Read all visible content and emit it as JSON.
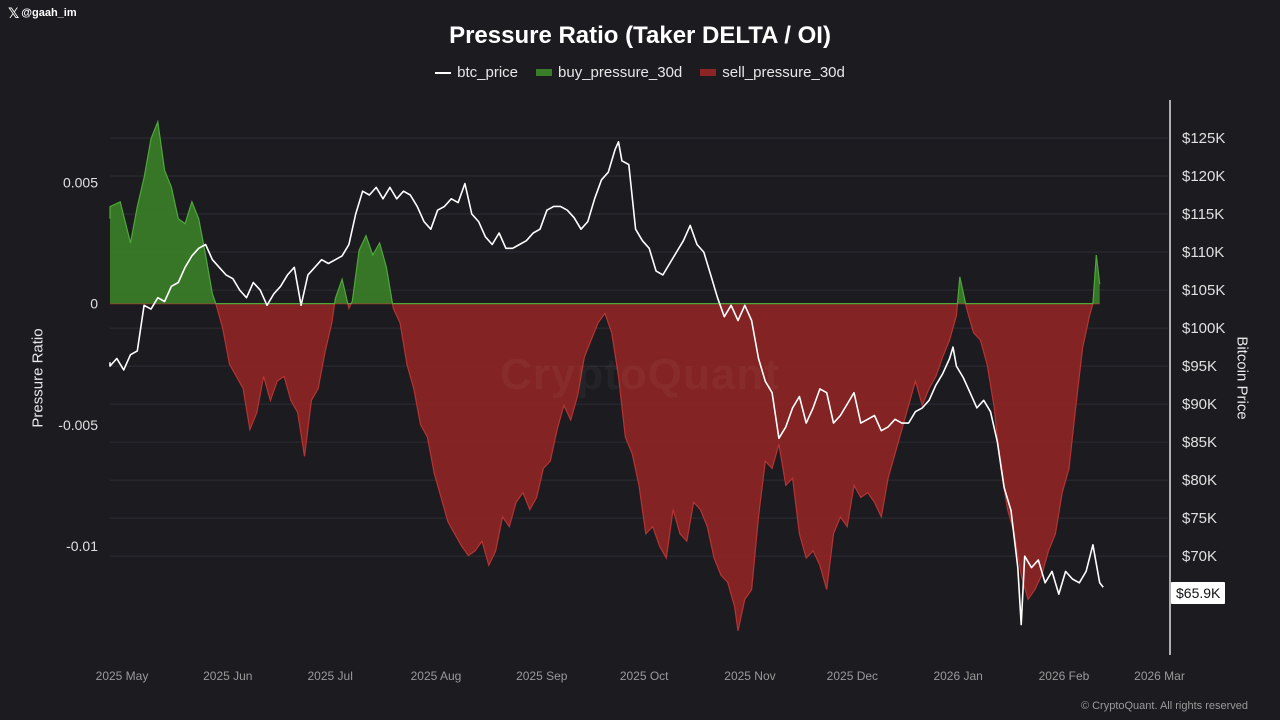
{
  "handle": {
    "icon": "x-logo-icon",
    "text": "@gaah_im"
  },
  "watermark": "CryptoQuant",
  "copyright": "© CryptoQuant. All rights reserved",
  "price_badge": "$65.9K",
  "chart_data": {
    "type": "area",
    "title": "Pressure Ratio (Taker DELTA / OI)",
    "ylabel": "Pressure Ratio",
    "y2label": "Bitcoin Price",
    "legend": [
      "btc_price",
      "buy_pressure_30d",
      "sell_pressure_30d"
    ],
    "colors": {
      "btc_price": "#ffffff",
      "buy": "#3a7d28",
      "sell": "#8c2424",
      "buy_line": "#4fa83a",
      "sell_line": "#b53434"
    },
    "ylim": [
      -0.0145,
      0.0084
    ],
    "y2lim": [
      57000,
      130000
    ],
    "yticks": [
      {
        "v": 0.005,
        "label": "0.005"
      },
      {
        "v": 0,
        "label": "0"
      },
      {
        "v": -0.005,
        "label": "-0.005"
      },
      {
        "v": -0.01,
        "label": "-0.01"
      }
    ],
    "y2ticks": [
      {
        "v": 125000,
        "label": "$125K"
      },
      {
        "v": 120000,
        "label": "$120K"
      },
      {
        "v": 115000,
        "label": "$115K"
      },
      {
        "v": 110000,
        "label": "$110K"
      },
      {
        "v": 105000,
        "label": "$105K"
      },
      {
        "v": 100000,
        "label": "$100K"
      },
      {
        "v": 95000,
        "label": "$95K"
      },
      {
        "v": 90000,
        "label": "$90K"
      },
      {
        "v": 85000,
        "label": "$85K"
      },
      {
        "v": 80000,
        "label": "$80K"
      },
      {
        "v": 75000,
        "label": "$75K"
      },
      {
        "v": 70000,
        "label": "$70K"
      }
    ],
    "xlim": [
      0,
      310
    ],
    "xticks": [
      {
        "v": 0,
        "label": "2025 May"
      },
      {
        "v": 31,
        "label": "2025 Jun"
      },
      {
        "v": 61,
        "label": "2025 Jul"
      },
      {
        "v": 92,
        "label": "2025 Aug"
      },
      {
        "v": 123,
        "label": "2025 Sep"
      },
      {
        "v": 153,
        "label": "2025 Oct"
      },
      {
        "v": 184,
        "label": "2025 Nov"
      },
      {
        "v": 214,
        "label": "2025 Dec"
      },
      {
        "v": 245,
        "label": "2026 Jan"
      },
      {
        "v": 276,
        "label": "2026 Feb"
      },
      {
        "v": 304,
        "label": "2026 Mar"
      }
    ],
    "pressure": [
      [
        -3,
        0.0035
      ],
      [
        0,
        0.004
      ],
      [
        3,
        0.0042
      ],
      [
        6,
        0.0025
      ],
      [
        8,
        0.004
      ],
      [
        10,
        0.0052
      ],
      [
        12,
        0.0068
      ],
      [
        14,
        0.0075
      ],
      [
        16,
        0.0055
      ],
      [
        18,
        0.0048
      ],
      [
        20,
        0.0035
      ],
      [
        22,
        0.0033
      ],
      [
        24,
        0.0042
      ],
      [
        26,
        0.0035
      ],
      [
        28,
        0.002
      ],
      [
        30,
        0.0004
      ],
      [
        31,
        0.0
      ],
      [
        33,
        -0.001
      ],
      [
        35,
        -0.0025
      ],
      [
        37,
        -0.003
      ],
      [
        39,
        -0.0035
      ],
      [
        41,
        -0.0052
      ],
      [
        43,
        -0.0045
      ],
      [
        45,
        -0.003
      ],
      [
        47,
        -0.004
      ],
      [
        49,
        -0.0032
      ],
      [
        51,
        -0.003
      ],
      [
        53,
        -0.004
      ],
      [
        55,
        -0.0045
      ],
      [
        57,
        -0.0063
      ],
      [
        59,
        -0.004
      ],
      [
        61,
        -0.0035
      ],
      [
        63,
        -0.002
      ],
      [
        65,
        -0.0008
      ],
      [
        66,
        0.0002
      ],
      [
        68,
        0.001
      ],
      [
        70,
        -0.0002
      ],
      [
        71,
        0.0001
      ],
      [
        73,
        0.0022
      ],
      [
        75,
        0.0028
      ],
      [
        77,
        0.002
      ],
      [
        79,
        0.0025
      ],
      [
        81,
        0.0015
      ],
      [
        83,
        -0.0002
      ],
      [
        85,
        -0.0008
      ],
      [
        87,
        -0.0025
      ],
      [
        89,
        -0.0035
      ],
      [
        91,
        -0.005
      ],
      [
        93,
        -0.0055
      ],
      [
        95,
        -0.007
      ],
      [
        97,
        -0.008
      ],
      [
        99,
        -0.009
      ],
      [
        101,
        -0.0095
      ],
      [
        103,
        -0.01
      ],
      [
        105,
        -0.0104
      ],
      [
        107,
        -0.0102
      ],
      [
        109,
        -0.0098
      ],
      [
        111,
        -0.0108
      ],
      [
        113,
        -0.0102
      ],
      [
        115,
        -0.0088
      ],
      [
        117,
        -0.0092
      ],
      [
        119,
        -0.0082
      ],
      [
        121,
        -0.0078
      ],
      [
        123,
        -0.0085
      ],
      [
        125,
        -0.008
      ],
      [
        127,
        -0.0068
      ],
      [
        129,
        -0.0065
      ],
      [
        131,
        -0.0052
      ],
      [
        133,
        -0.0042
      ],
      [
        135,
        -0.0048
      ],
      [
        137,
        -0.0038
      ],
      [
        139,
        -0.0022
      ],
      [
        141,
        -0.0015
      ],
      [
        143,
        -0.0008
      ],
      [
        145,
        -0.0004
      ],
      [
        147,
        -0.0012
      ],
      [
        149,
        -0.003
      ],
      [
        151,
        -0.0055
      ],
      [
        153,
        -0.0062
      ],
      [
        155,
        -0.0075
      ],
      [
        157,
        -0.0095
      ],
      [
        159,
        -0.0092
      ],
      [
        161,
        -0.01
      ],
      [
        163,
        -0.0105
      ],
      [
        165,
        -0.0085
      ],
      [
        167,
        -0.0095
      ],
      [
        169,
        -0.0098
      ],
      [
        171,
        -0.0082
      ],
      [
        173,
        -0.0085
      ],
      [
        175,
        -0.0092
      ],
      [
        177,
        -0.0105
      ],
      [
        179,
        -0.0112
      ],
      [
        181,
        -0.0115
      ],
      [
        183,
        -0.0125
      ],
      [
        184,
        -0.0135
      ],
      [
        186,
        -0.0122
      ],
      [
        188,
        -0.0118
      ],
      [
        190,
        -0.0088
      ],
      [
        192,
        -0.0065
      ],
      [
        194,
        -0.0068
      ],
      [
        196,
        -0.0058
      ],
      [
        198,
        -0.0075
      ],
      [
        200,
        -0.0072
      ],
      [
        202,
        -0.0095
      ],
      [
        204,
        -0.0105
      ],
      [
        206,
        -0.0102
      ],
      [
        208,
        -0.0108
      ],
      [
        210,
        -0.0118
      ],
      [
        212,
        -0.0095
      ],
      [
        214,
        -0.0088
      ],
      [
        216,
        -0.0092
      ],
      [
        218,
        -0.0075
      ],
      [
        220,
        -0.008
      ],
      [
        222,
        -0.0078
      ],
      [
        224,
        -0.0082
      ],
      [
        226,
        -0.0088
      ],
      [
        228,
        -0.0072
      ],
      [
        230,
        -0.0062
      ],
      [
        232,
        -0.0052
      ],
      [
        234,
        -0.0042
      ],
      [
        236,
        -0.0032
      ],
      [
        238,
        -0.0042
      ],
      [
        240,
        -0.0035
      ],
      [
        242,
        -0.003
      ],
      [
        244,
        -0.0022
      ],
      [
        246,
        -0.0015
      ],
      [
        248,
        -0.0005
      ],
      [
        249,
        0.0011
      ],
      [
        251,
        -0.0002
      ],
      [
        253,
        -0.0012
      ],
      [
        255,
        -0.0015
      ],
      [
        257,
        -0.0025
      ],
      [
        259,
        -0.0042
      ],
      [
        261,
        -0.0068
      ],
      [
        263,
        -0.0085
      ],
      [
        265,
        -0.0095
      ],
      [
        267,
        -0.0112
      ],
      [
        269,
        -0.0122
      ],
      [
        271,
        -0.0118
      ],
      [
        273,
        -0.0112
      ],
      [
        275,
        -0.0102
      ],
      [
        277,
        -0.0095
      ],
      [
        279,
        -0.0078
      ],
      [
        281,
        -0.0068
      ],
      [
        283,
        -0.0042
      ],
      [
        285,
        -0.0018
      ],
      [
        287,
        -0.0005
      ],
      [
        288,
        0.0
      ],
      [
        289,
        0.002
      ],
      [
        290,
        0.0008
      ]
    ],
    "btc_price": [
      [
        -3,
        95500
      ],
      [
        0,
        95000
      ],
      [
        2,
        96000
      ],
      [
        4,
        94500
      ],
      [
        6,
        96500
      ],
      [
        8,
        97000
      ],
      [
        10,
        103000
      ],
      [
        12,
        102500
      ],
      [
        14,
        104000
      ],
      [
        16,
        103500
      ],
      [
        18,
        105500
      ],
      [
        20,
        106000
      ],
      [
        22,
        108000
      ],
      [
        24,
        109500
      ],
      [
        26,
        110500
      ],
      [
        28,
        111000
      ],
      [
        30,
        109000
      ],
      [
        32,
        108000
      ],
      [
        34,
        107000
      ],
      [
        36,
        106500
      ],
      [
        38,
        105000
      ],
      [
        40,
        104000
      ],
      [
        42,
        106000
      ],
      [
        44,
        105000
      ],
      [
        46,
        103000
      ],
      [
        48,
        104500
      ],
      [
        50,
        105500
      ],
      [
        52,
        107000
      ],
      [
        54,
        108000
      ],
      [
        56,
        103000
      ],
      [
        58,
        107000
      ],
      [
        60,
        108000
      ],
      [
        62,
        109000
      ],
      [
        64,
        108500
      ],
      [
        66,
        109000
      ],
      [
        68,
        109500
      ],
      [
        70,
        111000
      ],
      [
        72,
        115000
      ],
      [
        74,
        118000
      ],
      [
        76,
        117500
      ],
      [
        78,
        118500
      ],
      [
        80,
        117000
      ],
      [
        82,
        118500
      ],
      [
        84,
        117000
      ],
      [
        86,
        118000
      ],
      [
        88,
        117500
      ],
      [
        90,
        116000
      ],
      [
        92,
        114000
      ],
      [
        94,
        113000
      ],
      [
        96,
        115500
      ],
      [
        98,
        116000
      ],
      [
        100,
        117000
      ],
      [
        102,
        116500
      ],
      [
        104,
        119000
      ],
      [
        106,
        115000
      ],
      [
        108,
        114000
      ],
      [
        110,
        112000
      ],
      [
        112,
        111000
      ],
      [
        114,
        112500
      ],
      [
        116,
        110500
      ],
      [
        118,
        110500
      ],
      [
        120,
        111000
      ],
      [
        122,
        111500
      ],
      [
        124,
        112500
      ],
      [
        126,
        113000
      ],
      [
        128,
        115500
      ],
      [
        130,
        116000
      ],
      [
        132,
        116000
      ],
      [
        134,
        115500
      ],
      [
        136,
        114500
      ],
      [
        138,
        113000
      ],
      [
        140,
        114000
      ],
      [
        142,
        117000
      ],
      [
        144,
        119500
      ],
      [
        146,
        120500
      ],
      [
        148,
        123500
      ],
      [
        149,
        124500
      ],
      [
        150,
        122000
      ],
      [
        152,
        121500
      ],
      [
        154,
        113000
      ],
      [
        156,
        111500
      ],
      [
        158,
        110500
      ],
      [
        160,
        107500
      ],
      [
        162,
        107000
      ],
      [
        164,
        108500
      ],
      [
        166,
        110000
      ],
      [
        168,
        111500
      ],
      [
        170,
        113500
      ],
      [
        172,
        111000
      ],
      [
        174,
        110000
      ],
      [
        176,
        107000
      ],
      [
        178,
        104000
      ],
      [
        180,
        101500
      ],
      [
        182,
        103000
      ],
      [
        184,
        101000
      ],
      [
        186,
        103000
      ],
      [
        188,
        101000
      ],
      [
        190,
        96000
      ],
      [
        192,
        93000
      ],
      [
        194,
        91500
      ],
      [
        196,
        85500
      ],
      [
        198,
        87000
      ],
      [
        200,
        89500
      ],
      [
        202,
        91000
      ],
      [
        204,
        87500
      ],
      [
        206,
        89500
      ],
      [
        208,
        92000
      ],
      [
        210,
        91500
      ],
      [
        212,
        87500
      ],
      [
        214,
        88500
      ],
      [
        216,
        90000
      ],
      [
        218,
        91500
      ],
      [
        220,
        87500
      ],
      [
        222,
        88000
      ],
      [
        224,
        88500
      ],
      [
        226,
        86500
      ],
      [
        228,
        87000
      ],
      [
        230,
        88000
      ],
      [
        232,
        87500
      ],
      [
        234,
        87500
      ],
      [
        236,
        89000
      ],
      [
        238,
        89500
      ],
      [
        240,
        90500
      ],
      [
        242,
        92500
      ],
      [
        244,
        94000
      ],
      [
        246,
        96000
      ],
      [
        247,
        97500
      ],
      [
        248,
        95000
      ],
      [
        250,
        93500
      ],
      [
        252,
        91500
      ],
      [
        254,
        89500
      ],
      [
        256,
        90500
      ],
      [
        258,
        89000
      ],
      [
        260,
        85000
      ],
      [
        262,
        79000
      ],
      [
        264,
        76000
      ],
      [
        266,
        68500
      ],
      [
        267,
        61000
      ],
      [
        268,
        70000
      ],
      [
        270,
        68500
      ],
      [
        272,
        69500
      ],
      [
        274,
        66500
      ],
      [
        276,
        68000
      ],
      [
        278,
        65000
      ],
      [
        280,
        68000
      ],
      [
        282,
        67000
      ],
      [
        284,
        66500
      ],
      [
        286,
        68000
      ],
      [
        288,
        71500
      ],
      [
        290,
        66500
      ],
      [
        291,
        65900
      ]
    ]
  }
}
